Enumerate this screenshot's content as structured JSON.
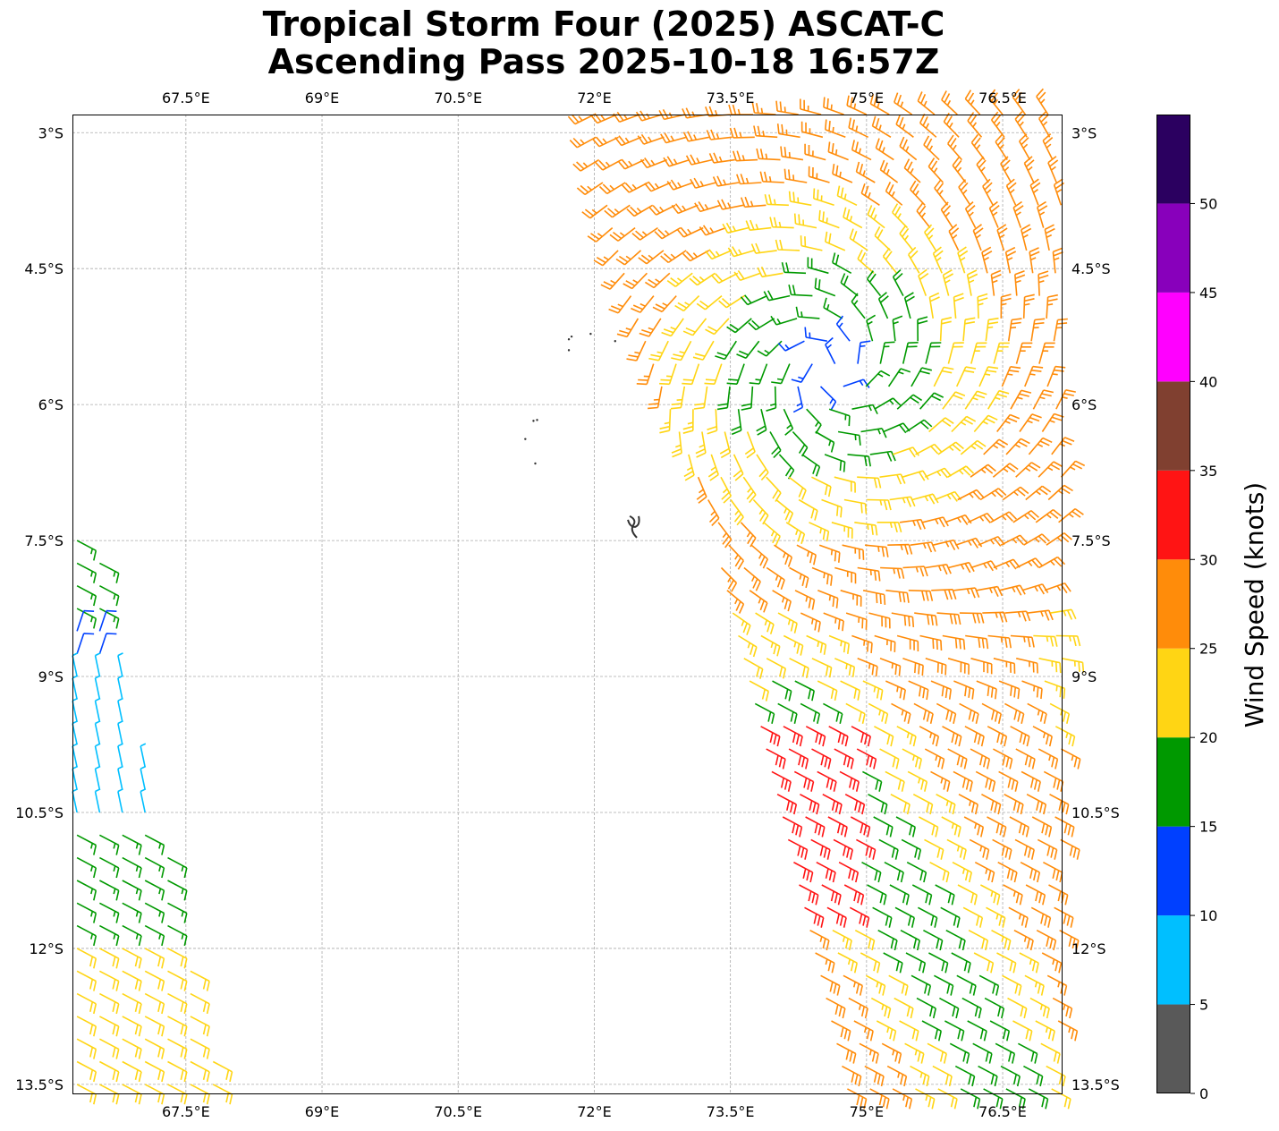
{
  "title_line1": "Tropical Storm Four (2025) ASCAT-C",
  "title_line2": "Ascending Pass 2025-10-18 16:57Z",
  "map": {
    "lon_range": [
      66.25,
      77.15
    ],
    "lat_range": [
      -13.6,
      -2.8
    ],
    "lon_ticks": [
      {
        "value": 67.5,
        "label": "67.5°E"
      },
      {
        "value": 69.0,
        "label": "69°E"
      },
      {
        "value": 70.5,
        "label": "70.5°E"
      },
      {
        "value": 72.0,
        "label": "72°E"
      },
      {
        "value": 73.5,
        "label": "73.5°E"
      },
      {
        "value": 75.0,
        "label": "75°E"
      },
      {
        "value": 76.5,
        "label": "76.5°E"
      }
    ],
    "lat_ticks": [
      {
        "value": -3.0,
        "label": "3°S"
      },
      {
        "value": -4.5,
        "label": "4.5°S"
      },
      {
        "value": -6.0,
        "label": "6°S"
      },
      {
        "value": -7.5,
        "label": "7.5°S"
      },
      {
        "value": -9.0,
        "label": "9°S"
      },
      {
        "value": -10.5,
        "label": "10.5°S"
      },
      {
        "value": -12.0,
        "label": "12°S"
      },
      {
        "value": -13.5,
        "label": "13.5°S"
      }
    ],
    "grid": true,
    "islands": [
      {
        "lon": 71.75,
        "lat": -5.25
      },
      {
        "lon": 71.72,
        "lat": -5.28
      },
      {
        "lon": 71.72,
        "lat": -5.4
      },
      {
        "lon": 71.96,
        "lat": -5.22
      },
      {
        "lon": 72.23,
        "lat": -5.3
      },
      {
        "lon": 71.33,
        "lat": -6.18
      },
      {
        "lon": 71.37,
        "lat": -6.17
      },
      {
        "lon": 71.24,
        "lat": -6.38
      },
      {
        "lon": 71.35,
        "lat": -6.65
      }
    ],
    "atoll_center": {
      "lon": 72.43,
      "lat": -7.33
    }
  },
  "colorbar": {
    "label": "Wind Speed (knots)",
    "bins": [
      {
        "from": 0,
        "to": 5,
        "color": "#595959"
      },
      {
        "from": 5,
        "to": 10,
        "color": "#00bfff"
      },
      {
        "from": 10,
        "to": 15,
        "color": "#0040ff"
      },
      {
        "from": 15,
        "to": 20,
        "color": "#009900"
      },
      {
        "from": 20,
        "to": 25,
        "color": "#ffd514"
      },
      {
        "from": 25,
        "to": 30,
        "color": "#ff8c0a"
      },
      {
        "from": 30,
        "to": 35,
        "color": "#ff1414"
      },
      {
        "from": 35,
        "to": 40,
        "color": "#804030"
      },
      {
        "from": 40,
        "to": 45,
        "color": "#ff00ff"
      },
      {
        "from": 45,
        "to": 50,
        "color": "#8800bb"
      },
      {
        "from": 50,
        "to": 55,
        "color": "#2b0060"
      }
    ],
    "tick_labels": [
      "0",
      "5",
      "10",
      "15",
      "20",
      "25",
      "30",
      "35",
      "40",
      "45",
      "50"
    ]
  },
  "wind_field": {
    "storm_center": {
      "lon": 74.6,
      "lat": -5.6
    },
    "east_swath": {
      "lat_top": -2.8,
      "lat_bottom": -13.6,
      "west_edge_top_lon": 72.0,
      "west_edge_bottom_lon": 74.8,
      "east_edge_lon": 77.15,
      "spacing_deg": 0.25
    },
    "west_swath": {
      "lat_top": -7.5,
      "lat_bottom": -13.6,
      "west_edge_lon": 66.25,
      "east_edge_top_lon": 66.5,
      "east_edge_bottom_lon": 67.9,
      "spacing_deg": 0.25
    }
  }
}
